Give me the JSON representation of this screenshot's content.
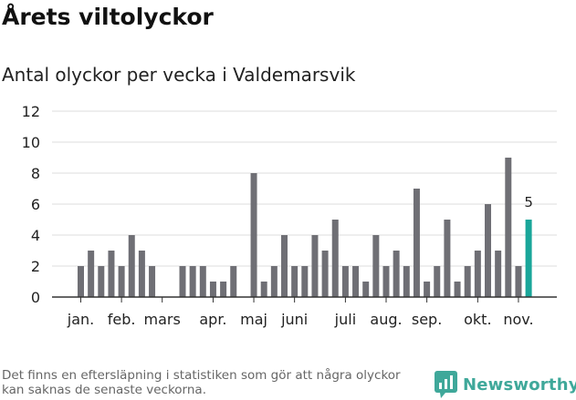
{
  "header": {
    "title": "Årets viltolyckor",
    "subtitle": "Antal olyckor per vecka i Valdemarsvik"
  },
  "footer": {
    "note": "Det finns en eftersläpning i statistiken som gör att några olyckor kan saknas de senaste veckorna.",
    "brand": "Newsworthy",
    "brand_icon": "newsworthy-logo-icon"
  },
  "colors": {
    "bar": "#6f6f75",
    "highlight": "#1aa69a",
    "grid": "#dddddd",
    "axis": "#333333",
    "brand": "#3fa89a"
  },
  "chart_data": {
    "type": "bar",
    "x_unit": "week",
    "x": [
      1,
      2,
      3,
      4,
      5,
      6,
      7,
      8,
      9,
      10,
      11,
      12,
      13,
      14,
      15,
      16,
      17,
      18,
      19,
      20,
      21,
      22,
      23,
      24,
      25,
      26,
      27,
      28,
      29,
      30,
      31,
      32,
      33,
      34,
      35,
      36,
      37,
      38,
      39,
      40,
      41,
      42,
      43,
      44,
      45
    ],
    "values": [
      2,
      3,
      2,
      3,
      2,
      4,
      3,
      2,
      0,
      0,
      2,
      2,
      2,
      1,
      1,
      2,
      0,
      8,
      1,
      2,
      4,
      2,
      2,
      4,
      3,
      5,
      2,
      2,
      1,
      4,
      2,
      3,
      2,
      7,
      1,
      2,
      5,
      1,
      2,
      3,
      6,
      3,
      9,
      2,
      5
    ],
    "highlight_x": 45,
    "data_labels": [
      {
        "x": 45,
        "label": "5"
      }
    ],
    "ylim": [
      0,
      12
    ],
    "yticks": [
      0,
      2,
      4,
      6,
      8,
      10,
      12
    ],
    "month_ticks": [
      {
        "label": "jan.",
        "x": 1
      },
      {
        "label": "feb.",
        "x": 5
      },
      {
        "label": "mars",
        "x": 9
      },
      {
        "label": "apr.",
        "x": 14
      },
      {
        "label": "maj",
        "x": 18
      },
      {
        "label": "juni",
        "x": 22
      },
      {
        "label": "juli",
        "x": 27
      },
      {
        "label": "aug.",
        "x": 31
      },
      {
        "label": "sep.",
        "x": 35
      },
      {
        "label": "okt.",
        "x": 40
      },
      {
        "label": "nov.",
        "x": 44
      }
    ],
    "grid": true,
    "legend": "none"
  }
}
